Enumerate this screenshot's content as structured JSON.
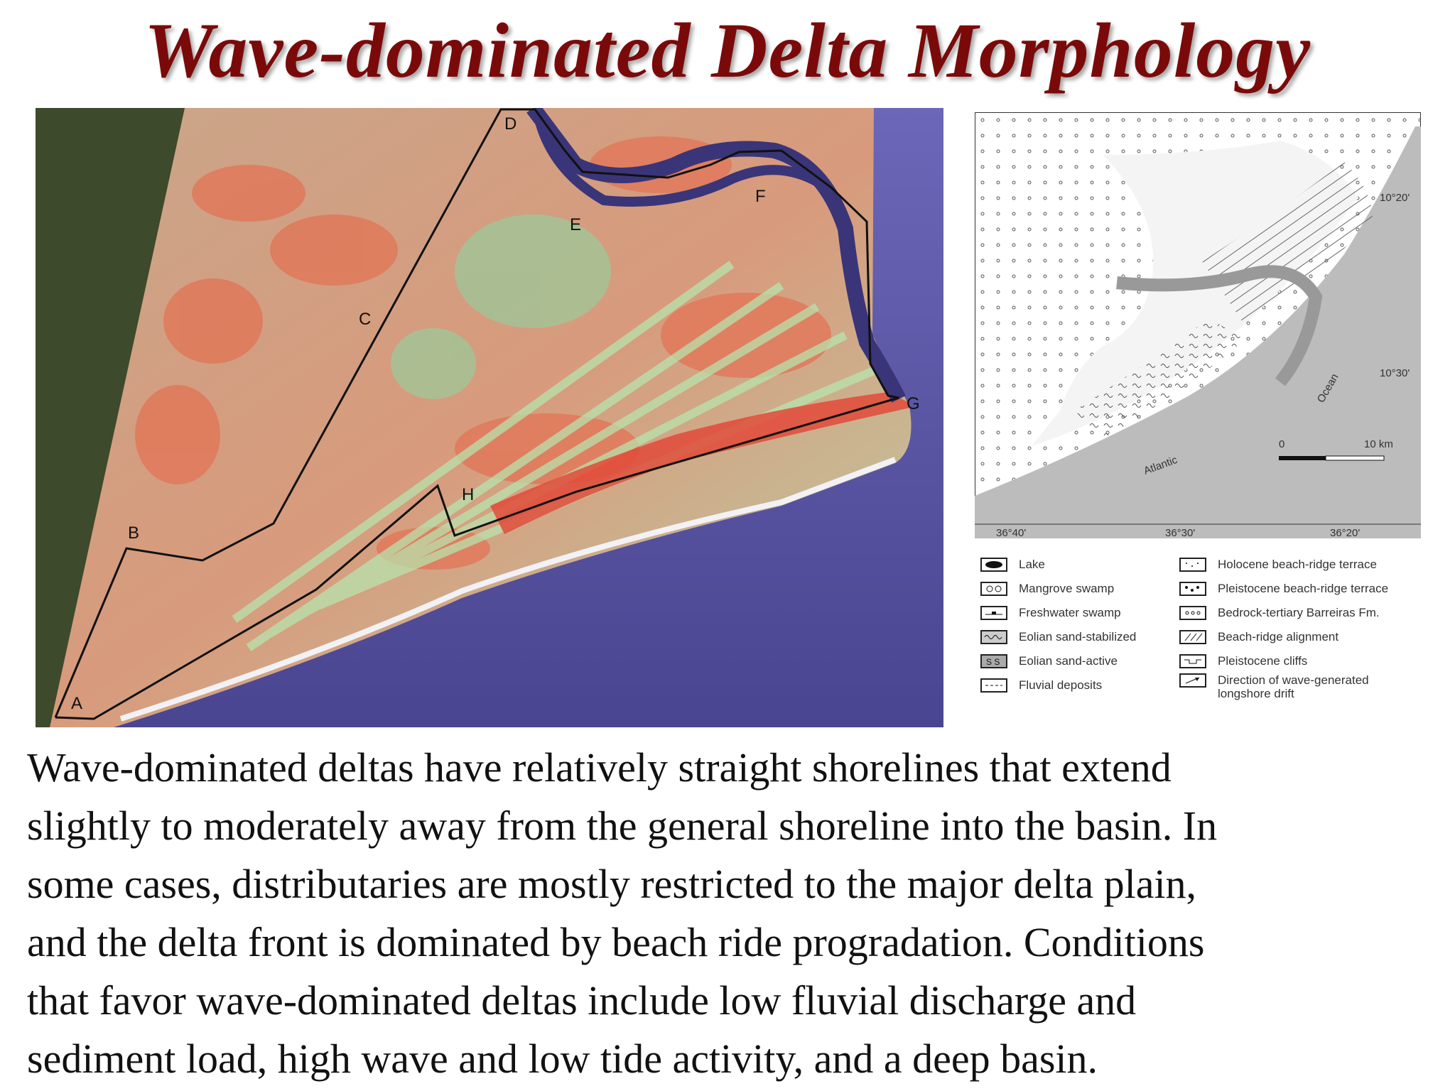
{
  "title": "Wave-dominated Delta Morphology",
  "satellite": {
    "points": [
      "A",
      "B",
      "C",
      "D",
      "E",
      "F",
      "G",
      "H"
    ]
  },
  "map": {
    "lat_labels": [
      "10°20'",
      "10°30'"
    ],
    "lon_labels": [
      "36°40'",
      "36°30'",
      "36°20'"
    ],
    "scale_zero": "0",
    "scale_end": "10 km",
    "ocean_label": "Ocean",
    "atlantic_label": "Atlantic"
  },
  "legend": {
    "left": [
      {
        "label": "Lake",
        "icon": "lake-swatch"
      },
      {
        "label": "Mangrove swamp",
        "icon": "mangrove-swatch"
      },
      {
        "label": "Freshwater swamp",
        "icon": "freshwater-swatch"
      },
      {
        "label": "Eolian sand-stabilized",
        "icon": "eolian-stabilized-swatch"
      },
      {
        "label": "Eolian sand-active",
        "icon": "eolian-active-swatch"
      },
      {
        "label": "Fluvial deposits",
        "icon": "fluvial-swatch"
      }
    ],
    "right": [
      {
        "label": "Holocene beach-ridge terrace",
        "icon": "holocene-swatch"
      },
      {
        "label": "Pleistocene beach-ridge terrace",
        "icon": "pleistocene-swatch"
      },
      {
        "label": "Bedrock-tertiary Barreiras Fm.",
        "icon": "bedrock-swatch"
      },
      {
        "label": "Beach-ridge alignment",
        "icon": "beach-ridge-swatch"
      },
      {
        "label": "Pleistocene cliffs",
        "icon": "cliffs-swatch"
      },
      {
        "label": "Direction of wave-generated longshore drift",
        "icon": "drift-arrow-swatch"
      }
    ]
  },
  "body_lines": [
    "Wave-dominated deltas have relatively straight shorelines that extend",
    "slightly to moderately away from the general shoreline into the basin.  In",
    "some cases, distributaries are mostly restricted to the major delta plain,",
    "and the delta front is dominated by beach ride progradation.  Conditions",
    "that favor wave-dominated deltas include low fluvial discharge and",
    "sediment load, high wave and low tide activity, and a deep basin."
  ]
}
